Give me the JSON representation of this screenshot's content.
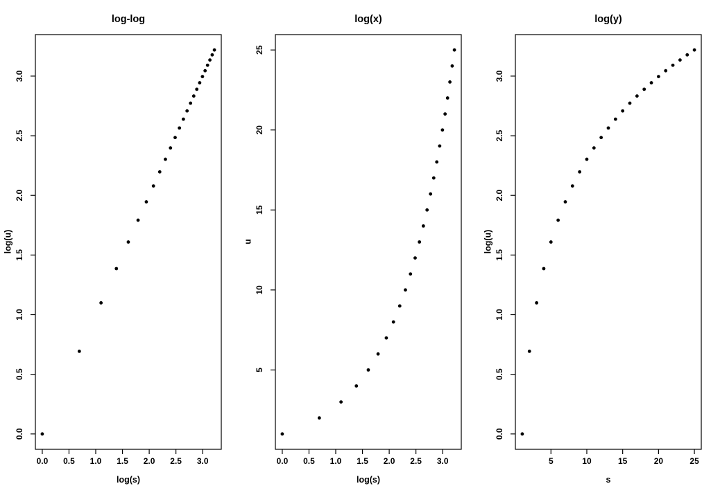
{
  "figure": {
    "background": "#ffffff",
    "axis_color": "#000000",
    "text_color": "#000000",
    "point_color": "#000000"
  },
  "chart_data": [
    {
      "type": "scatter",
      "title": "log-log",
      "xlabel": "log(s)",
      "ylabel": "log(u)",
      "x": [
        0.0,
        0.693,
        1.099,
        1.386,
        1.609,
        1.792,
        1.946,
        2.079,
        2.197,
        2.303,
        2.398,
        2.485,
        2.565,
        2.639,
        2.708,
        2.773,
        2.833,
        2.89,
        2.944,
        2.996,
        3.045,
        3.091,
        3.135,
        3.178,
        3.219
      ],
      "y": [
        0.0,
        0.693,
        1.099,
        1.386,
        1.609,
        1.792,
        1.946,
        2.079,
        2.197,
        2.303,
        2.398,
        2.485,
        2.565,
        2.639,
        2.708,
        2.773,
        2.833,
        2.89,
        2.944,
        2.996,
        3.045,
        3.091,
        3.135,
        3.178,
        3.219
      ],
      "xlim": [
        0,
        3.219
      ],
      "ylim": [
        0,
        3.219
      ],
      "xticks": [
        0,
        0.5,
        1,
        1.5,
        2,
        2.5,
        3
      ],
      "xtick_labels": [
        "0.0",
        "0.5",
        "1.0",
        "1.5",
        "2.0",
        "2.5",
        "3.0"
      ],
      "yticks": [
        0,
        0.5,
        1,
        1.5,
        2,
        2.5,
        3
      ],
      "ytick_labels": [
        "0.0",
        "0.5",
        "1.0",
        "1.5",
        "2.0",
        "2.5",
        "3.0"
      ],
      "grid": false,
      "legend": "none"
    },
    {
      "type": "scatter",
      "title": "log(x)",
      "xlabel": "log(s)",
      "ylabel": "u",
      "x": [
        0.0,
        0.693,
        1.099,
        1.386,
        1.609,
        1.792,
        1.946,
        2.079,
        2.197,
        2.303,
        2.398,
        2.485,
        2.565,
        2.639,
        2.708,
        2.773,
        2.833,
        2.89,
        2.944,
        2.996,
        3.045,
        3.091,
        3.135,
        3.178,
        3.219
      ],
      "y": [
        1,
        2,
        3,
        4,
        5,
        6,
        7,
        8,
        9,
        10,
        11,
        12,
        13,
        14,
        15,
        16,
        17,
        18,
        19,
        20,
        21,
        22,
        23,
        24,
        25
      ],
      "xlim": [
        0,
        3.219
      ],
      "ylim": [
        1,
        25
      ],
      "xticks": [
        0,
        0.5,
        1,
        1.5,
        2,
        2.5,
        3
      ],
      "xtick_labels": [
        "0.0",
        "0.5",
        "1.0",
        "1.5",
        "2.0",
        "2.5",
        "3.0"
      ],
      "yticks": [
        5,
        10,
        15,
        20,
        25
      ],
      "ytick_labels": [
        "5",
        "10",
        "15",
        "20",
        "25"
      ],
      "grid": false,
      "legend": "none"
    },
    {
      "type": "scatter",
      "title": "log(y)",
      "xlabel": "s",
      "ylabel": "log(u)",
      "x": [
        1,
        2,
        3,
        4,
        5,
        6,
        7,
        8,
        9,
        10,
        11,
        12,
        13,
        14,
        15,
        16,
        17,
        18,
        19,
        20,
        21,
        22,
        23,
        24,
        25
      ],
      "y": [
        0.0,
        0.693,
        1.099,
        1.386,
        1.609,
        1.792,
        1.946,
        2.079,
        2.197,
        2.303,
        2.398,
        2.485,
        2.565,
        2.639,
        2.708,
        2.773,
        2.833,
        2.89,
        2.944,
        2.996,
        3.045,
        3.091,
        3.135,
        3.178,
        3.219
      ],
      "xlim": [
        1,
        25
      ],
      "ylim": [
        0,
        3.219
      ],
      "xticks": [
        5,
        10,
        15,
        20,
        25
      ],
      "xtick_labels": [
        "5",
        "10",
        "15",
        "20",
        "25"
      ],
      "yticks": [
        0,
        0.5,
        1,
        1.5,
        2,
        2.5,
        3
      ],
      "ytick_labels": [
        "0.0",
        "0.5",
        "1.0",
        "1.5",
        "2.0",
        "2.5",
        "3.0"
      ],
      "grid": false,
      "legend": "none"
    }
  ]
}
